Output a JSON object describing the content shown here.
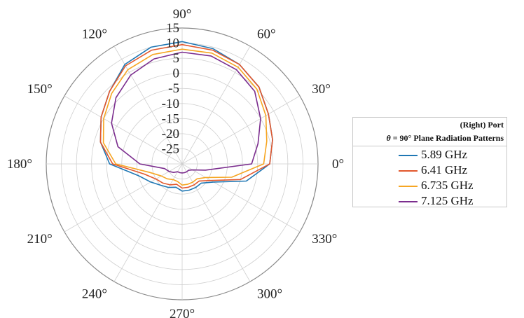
{
  "chart_data": {
    "type": "line",
    "subtype": "polar",
    "theta_direction": "counterclockwise",
    "theta_zero": "right",
    "theta_ticks": [
      "0°",
      "30°",
      "60°",
      "90°",
      "120°",
      "150°",
      "180°",
      "210°",
      "240°",
      "270°",
      "300°",
      "330°"
    ],
    "r_ticks": [
      "15",
      "10",
      "5",
      "0",
      "-5",
      "-10",
      "-15",
      "-20",
      "-25"
    ],
    "rlim": [
      -30,
      15
    ],
    "grid": true,
    "legend": {
      "title_line1": "(Right) Port",
      "title_symbol": "θ",
      "title_line2": " = 90° Plane Radiation Patterns",
      "placement": "right"
    },
    "angles_deg": [
      0,
      15,
      30,
      45,
      60,
      75,
      90,
      105,
      120,
      135,
      150,
      165,
      180,
      195,
      210,
      225,
      240,
      255,
      270,
      285,
      300,
      315,
      330,
      345
    ],
    "series": [
      {
        "name": "5.89 GHz",
        "color": "#1f77b4",
        "values": [
          -1,
          1,
          3,
          6,
          8,
          9.5,
          10.5,
          10,
          8,
          4,
          1,
          -2,
          -6,
          -15,
          -18,
          -20,
          -21,
          -22,
          -21,
          -21,
          -21,
          -21,
          -18,
          -8
        ]
      },
      {
        "name": "6.41 GHz",
        "color": "#e2572c",
        "values": [
          -1,
          1,
          3,
          6,
          8,
          9,
          9.5,
          9,
          7.5,
          4,
          1,
          -2,
          -7,
          -17,
          -20,
          -21,
          -22,
          -23,
          -22,
          -22,
          -22,
          -22,
          -19,
          -10
        ]
      },
      {
        "name": "6.735 GHz",
        "color": "#f6a623",
        "values": [
          -3,
          -1,
          2,
          5,
          7,
          8,
          8,
          7.5,
          6,
          3,
          0,
          -3,
          -8,
          -19,
          -22,
          -23,
          -24,
          -24,
          -23,
          -23,
          -23,
          -23,
          -21,
          -13
        ]
      },
      {
        "name": "7.125 GHz",
        "color": "#7b2d8e",
        "values": [
          -7,
          -4,
          0,
          4,
          6,
          7,
          7,
          6,
          4,
          1,
          -3,
          -8,
          -16,
          -24,
          -25,
          -26,
          -27,
          -27,
          -27,
          -27,
          -27,
          -27,
          -26,
          -22
        ]
      }
    ]
  }
}
